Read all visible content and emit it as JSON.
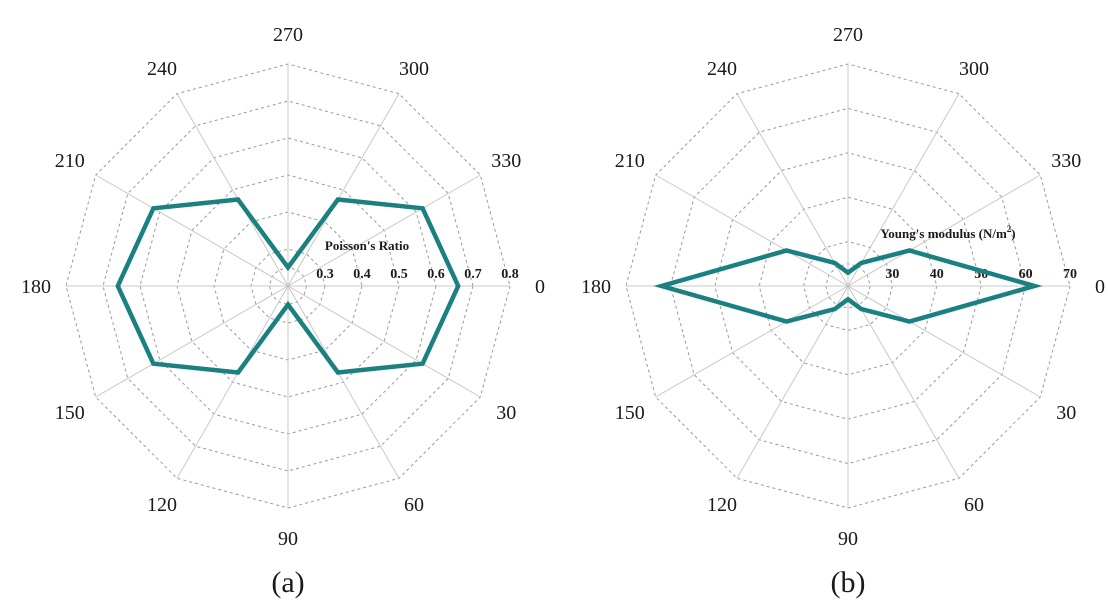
{
  "chart_data": [
    {
      "type": "radar",
      "panel_label": "(a)",
      "axis_title": "Poisson's Ratio",
      "angles": [
        0,
        30,
        60,
        90,
        120,
        150,
        180,
        210,
        240,
        270,
        300,
        330
      ],
      "angle_labels": [
        "0",
        "30",
        "60",
        "90",
        "120",
        "150",
        "180",
        "210",
        "240",
        "270",
        "300",
        "330"
      ],
      "radial_range": [
        0.2,
        0.8
      ],
      "radial_ticks": [
        0.3,
        0.4,
        0.5,
        0.6,
        0.7,
        0.8
      ],
      "radial_tick_labels": [
        "0.3",
        "0.4",
        "0.5",
        "0.6",
        "0.7",
        "0.8"
      ],
      "grid": true,
      "series": [
        {
          "color": "#1a8080",
          "values": [
            0.66,
            0.62,
            0.47,
            0.25,
            0.47,
            0.62,
            0.66,
            0.62,
            0.47,
            0.25,
            0.47,
            0.62
          ]
        }
      ]
    },
    {
      "type": "radar",
      "panel_label": "(b)",
      "axis_title": "Young's modulus (N/m",
      "axis_title_sup": "2",
      "axis_title_end": ")",
      "angles": [
        0,
        30,
        60,
        90,
        120,
        150,
        180,
        210,
        240,
        270,
        300,
        330
      ],
      "angle_labels": [
        "0",
        "30",
        "60",
        "90",
        "120",
        "150",
        "180",
        "210",
        "240",
        "270",
        "300",
        "330"
      ],
      "radial_range": [
        20,
        70
      ],
      "radial_ticks": [
        30,
        40,
        50,
        60,
        70
      ],
      "radial_tick_labels": [
        "30",
        "40",
        "50",
        "60",
        "70"
      ],
      "grid": true,
      "series": [
        {
          "color": "#1a8080",
          "values": [
            62,
            36,
            26,
            23,
            26,
            36,
            62,
            36,
            26,
            23,
            26,
            36
          ]
        }
      ]
    }
  ]
}
